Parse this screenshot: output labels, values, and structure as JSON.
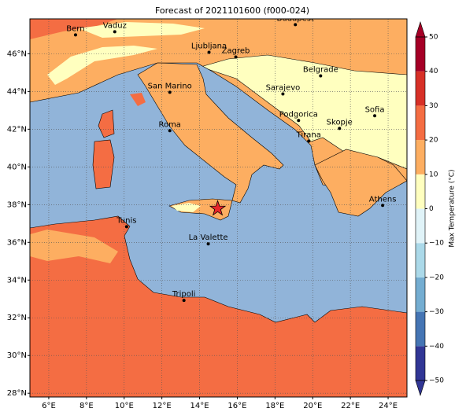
{
  "title": "Forecast of 2021101600 (f000-024)",
  "map": {
    "xlim": [
      5,
      25
    ],
    "ylim": [
      27.8,
      47.85
    ],
    "xticks": [
      {
        "value": 6,
        "label": "6°E"
      },
      {
        "value": 8,
        "label": "8°E"
      },
      {
        "value": 10,
        "label": "10°E"
      },
      {
        "value": 12,
        "label": "12°E"
      },
      {
        "value": 14,
        "label": "14°E"
      },
      {
        "value": 16,
        "label": "16°E"
      },
      {
        "value": 18,
        "label": "18°E"
      },
      {
        "value": 20,
        "label": "20°E"
      },
      {
        "value": 22,
        "label": "22°E"
      },
      {
        "value": 24,
        "label": "24°E"
      }
    ],
    "yticks": [
      {
        "value": 28,
        "label": "28°N"
      },
      {
        "value": 30,
        "label": "30°N"
      },
      {
        "value": 32,
        "label": "32°N"
      },
      {
        "value": 34,
        "label": "34°N"
      },
      {
        "value": 36,
        "label": "36°N"
      },
      {
        "value": 38,
        "label": "38°N"
      },
      {
        "value": 40,
        "label": "40°N"
      },
      {
        "value": 42,
        "label": "42°N"
      },
      {
        "value": 44,
        "label": "44°N"
      },
      {
        "value": 46,
        "label": "46°N"
      }
    ],
    "grid": true,
    "cities": [
      {
        "name": "Bern",
        "lon": 7.42,
        "lat": 47.0
      },
      {
        "name": "Vaduz",
        "lon": 9.5,
        "lat": 47.17
      },
      {
        "name": "Budapest",
        "lon": 19.08,
        "lat": 47.54
      },
      {
        "name": "Ljubljana",
        "lon": 14.5,
        "lat": 46.08
      },
      {
        "name": "Zagreb",
        "lon": 15.92,
        "lat": 45.83
      },
      {
        "name": "Belgrade",
        "lon": 20.42,
        "lat": 44.83
      },
      {
        "name": "San Marino",
        "lon": 12.42,
        "lat": 43.96
      },
      {
        "name": "Sarajevo",
        "lon": 18.42,
        "lat": 43.87
      },
      {
        "name": "Sofia",
        "lon": 23.29,
        "lat": 42.71
      },
      {
        "name": "Podgorica",
        "lon": 19.25,
        "lat": 42.46
      },
      {
        "name": "Skopje",
        "lon": 21.42,
        "lat": 42.04
      },
      {
        "name": "Roma",
        "lon": 12.42,
        "lat": 41.92
      },
      {
        "name": "Tirana",
        "lon": 19.79,
        "lat": 41.37
      },
      {
        "name": "Athens",
        "lon": 23.71,
        "lat": 37.96
      },
      {
        "name": "Tunis",
        "lon": 10.13,
        "lat": 36.83
      },
      {
        "name": "La Valette",
        "lon": 14.46,
        "lat": 35.92
      },
      {
        "name": "Tripoli",
        "lon": 13.17,
        "lat": 32.92
      }
    ],
    "marker": {
      "lon": 14.96,
      "lat": 37.79,
      "color": "#e8262a"
    }
  },
  "colorbar": {
    "label": "Max Temperature (°C)",
    "lim": [
      -50,
      50
    ],
    "levels": [
      -50,
      -40,
      -30,
      -20,
      -10,
      0,
      10,
      20,
      30,
      40,
      50
    ],
    "colors": [
      "#313695",
      "#4575b4",
      "#74add1",
      "#abd9e9",
      "#e0f3f8",
      "#ffffbf",
      "#fdae61",
      "#f46d43",
      "#d73027",
      "#a50026"
    ],
    "ticks": [
      {
        "value": -50,
        "label": "−50"
      },
      {
        "value": -40,
        "label": "−40"
      },
      {
        "value": -30,
        "label": "−30"
      },
      {
        "value": -20,
        "label": "−20"
      },
      {
        "value": -10,
        "label": "−10"
      },
      0,
      10,
      20,
      30,
      40,
      50
    ]
  }
}
